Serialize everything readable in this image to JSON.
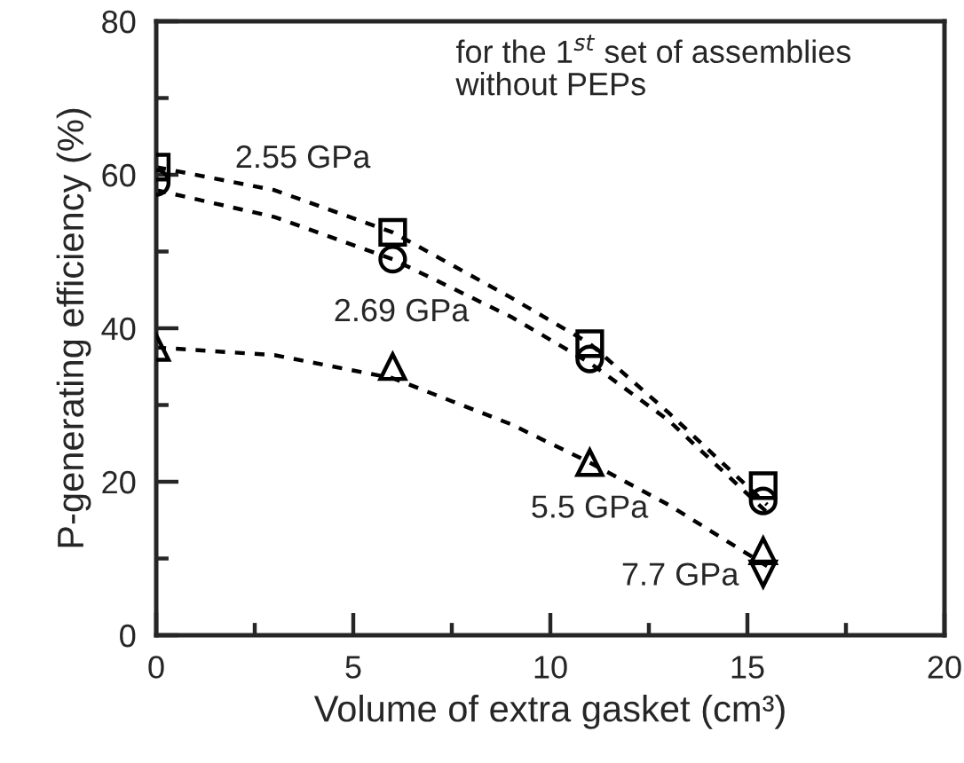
{
  "chart_data": {
    "type": "scatter",
    "xlabel": "Volume of extra gasket (cm³)",
    "ylabel": "P-generating efficiency (%)",
    "xlim": [
      0,
      20
    ],
    "ylim": [
      0,
      80
    ],
    "xticks": [
      0,
      {
        "value": 2.5,
        "label": null
      },
      5,
      {
        "value": 7.5,
        "label": null
      },
      10,
      {
        "value": 12.5,
        "label": null
      },
      15,
      {
        "value": 17.5,
        "label": null
      },
      20
    ],
    "yticks": [
      0,
      {
        "value": 10,
        "label": null
      },
      20,
      {
        "value": 30,
        "label": null
      },
      40,
      {
        "value": 50,
        "label": null
      },
      60,
      {
        "value": 70,
        "label": null
      },
      80
    ],
    "grid": false,
    "legend": false,
    "series": [
      {
        "type": "line",
        "line_style": "dotted",
        "marker": "none",
        "color": "#000000",
        "x": [
          0,
          3,
          6,
          9,
          11,
          13,
          15.5
        ],
        "values": [
          61,
          58,
          52.5,
          44,
          38,
          29,
          17
        ]
      },
      {
        "type": "line",
        "line_style": "dotted",
        "marker": "none",
        "color": "#000000",
        "x": [
          0,
          3,
          6,
          9,
          11,
          13,
          15.5
        ],
        "values": [
          58,
          54.5,
          49,
          41.5,
          35.5,
          28,
          16
        ]
      },
      {
        "type": "line",
        "line_style": "dotted",
        "marker": "none",
        "color": "#000000",
        "x": [
          0,
          3,
          6,
          9,
          11,
          13,
          15.5
        ],
        "values": [
          37.5,
          36.5,
          33.5,
          27.5,
          22.5,
          17,
          9
        ]
      },
      {
        "marker": "square",
        "color": "#000000",
        "x": [
          0,
          6,
          11,
          15.4
        ],
        "values": [
          61,
          52.5,
          38,
          19.5
        ]
      },
      {
        "marker": "circle",
        "color": "#000000",
        "x": [
          0,
          6,
          11,
          15.4
        ],
        "values": [
          59,
          49,
          36,
          17.5
        ]
      },
      {
        "marker": "triangle",
        "color": "#000000",
        "x": [
          0,
          6,
          11,
          15.4
        ],
        "values": [
          37.5,
          35,
          22.5,
          11
        ]
      },
      {
        "marker": "triangle_down",
        "color": "#000000",
        "x": [
          15.4
        ],
        "values": [
          8
        ]
      }
    ],
    "annotations": [
      "2.55 GPa",
      "2.69 GPa",
      "5.5 GPa",
      "7.7 GPa",
      "for the 1$^{st}$ set of assemblies\nwithout PEPs"
    ]
  }
}
